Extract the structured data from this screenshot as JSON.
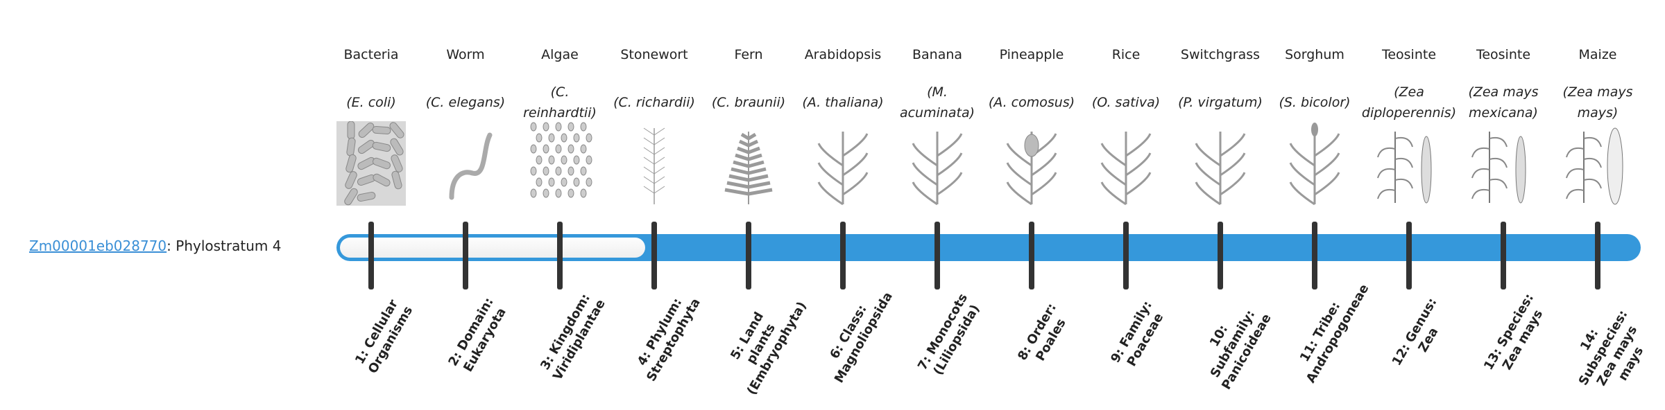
{
  "gene": {
    "id": "Zm00001eb028770",
    "suffix": ": Phylostratum 4"
  },
  "phylostratum": 4,
  "strata_total": 14,
  "colors": {
    "bar": "#3598db",
    "tick": "#333333",
    "link": "#3a8fd6"
  },
  "organisms": [
    {
      "common": "Bacteria",
      "scientific": "(E. coli)",
      "icon": "bacteria-icon",
      "stratum": "1: Cellular Organisms"
    },
    {
      "common": "Worm",
      "scientific": "(C. elegans)",
      "icon": "worm-icon",
      "stratum": "2: Domain: Eukaryota"
    },
    {
      "common": "Algae",
      "scientific": "(C. reinhardtii)",
      "icon": "algae-icon",
      "stratum": "3: Kingdom: Viridiplantae"
    },
    {
      "common": "Stonewort",
      "scientific": "(C. richardii)",
      "icon": "stonewort-icon",
      "stratum": "4: Phylum: Streptophyta"
    },
    {
      "common": "Fern",
      "scientific": "(C. braunii)",
      "icon": "fern-icon",
      "stratum": "5: Land plants (Embryophyta)"
    },
    {
      "common": "Arabidopsis",
      "scientific": "(A. thaliana)",
      "icon": "arabidopsis-icon",
      "stratum": "6: Class: Magnoliopsida"
    },
    {
      "common": "Banana",
      "scientific": "(M. acuminata)",
      "icon": "banana-icon",
      "stratum": "7: Monocots (Liliopsida)"
    },
    {
      "common": "Pineapple",
      "scientific": "(A. comosus)",
      "icon": "pineapple-icon",
      "stratum": "8: Order: Poales"
    },
    {
      "common": "Rice",
      "scientific": "(O. sativa)",
      "icon": "rice-icon",
      "stratum": "9: Family: Poaceae"
    },
    {
      "common": "Switchgrass",
      "scientific": "(P. virgatum)",
      "icon": "switchgrass-icon",
      "stratum": "10: Subfamily: Panicoideae"
    },
    {
      "common": "Sorghum",
      "scientific": "(S. bicolor)",
      "icon": "sorghum-icon",
      "stratum": "11: Tribe: Andropogoneae"
    },
    {
      "common": "Teosinte",
      "scientific": "(Zea diploperennis)",
      "icon": "teosinte-icon",
      "stratum": "12: Genus: Zea"
    },
    {
      "common": "Teosinte",
      "scientific": "(Zea mays mexicana)",
      "icon": "teosinte-icon",
      "stratum": "13: Species: Zea mays"
    },
    {
      "common": "Maize",
      "scientific": "(Zea mays mays)",
      "icon": "maize-icon",
      "stratum": "14: Subspecies: Zea mays mays"
    }
  ]
}
